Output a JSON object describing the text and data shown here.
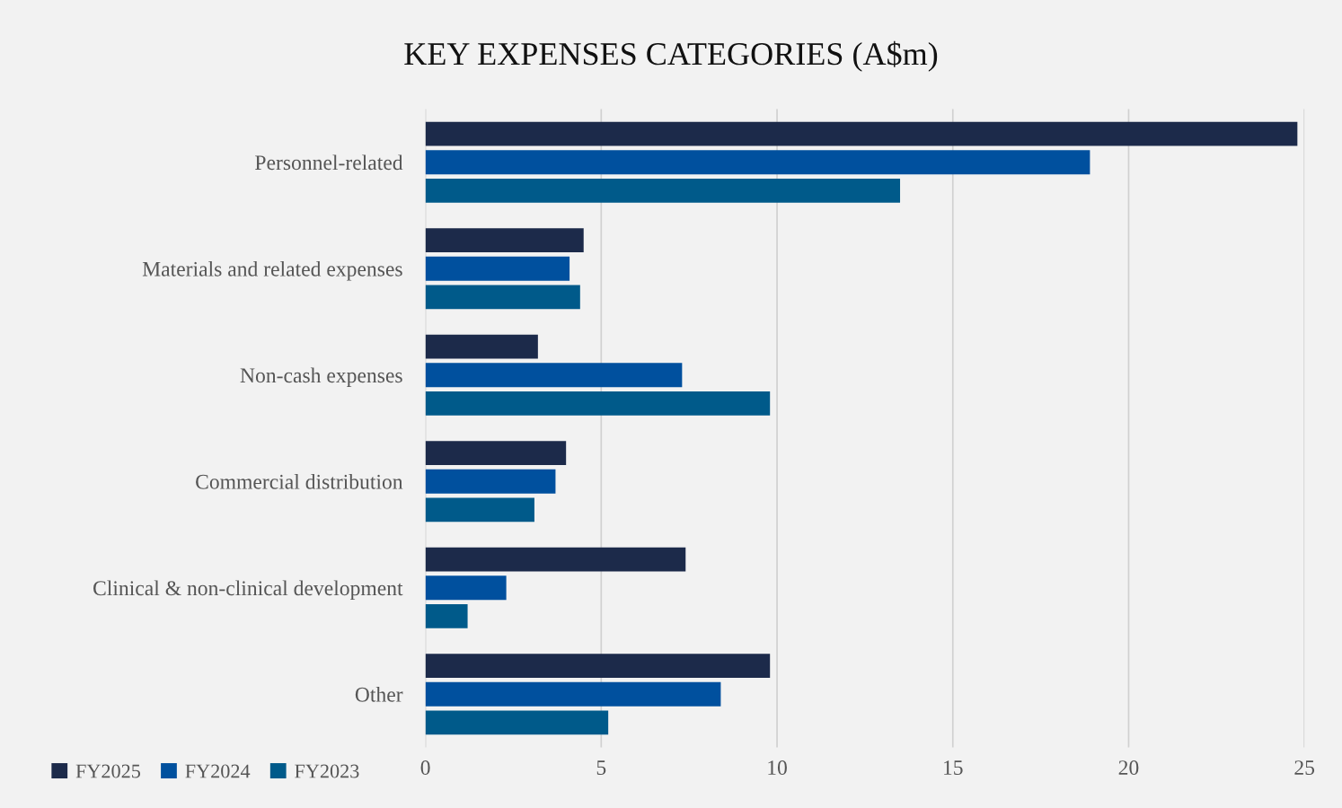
{
  "chart_data": {
    "type": "bar",
    "orientation": "horizontal",
    "title": "KEY EXPENSES CATEGORIES (A$m)",
    "categories": [
      "Personnel-related",
      "Materials and related expenses",
      "Non-cash expenses",
      "Commercial distribution",
      "Clinical & non-clinical development",
      "Other"
    ],
    "series": [
      {
        "name": "FY2025",
        "color": "#1c2a4a",
        "values": [
          24.8,
          4.5,
          3.2,
          4.0,
          7.4,
          9.8
        ]
      },
      {
        "name": "FY2024",
        "color": "#00509e",
        "values": [
          18.9,
          4.1,
          7.3,
          3.7,
          2.3,
          8.4
        ]
      },
      {
        "name": "FY2023",
        "color": "#005a8a",
        "values": [
          13.5,
          4.4,
          9.8,
          3.1,
          1.2,
          5.2
        ]
      }
    ],
    "xlim": [
      0,
      25
    ],
    "xticks": [
      0,
      5,
      10,
      15,
      20,
      25
    ],
    "grid": "x",
    "legend": "bottom left"
  }
}
